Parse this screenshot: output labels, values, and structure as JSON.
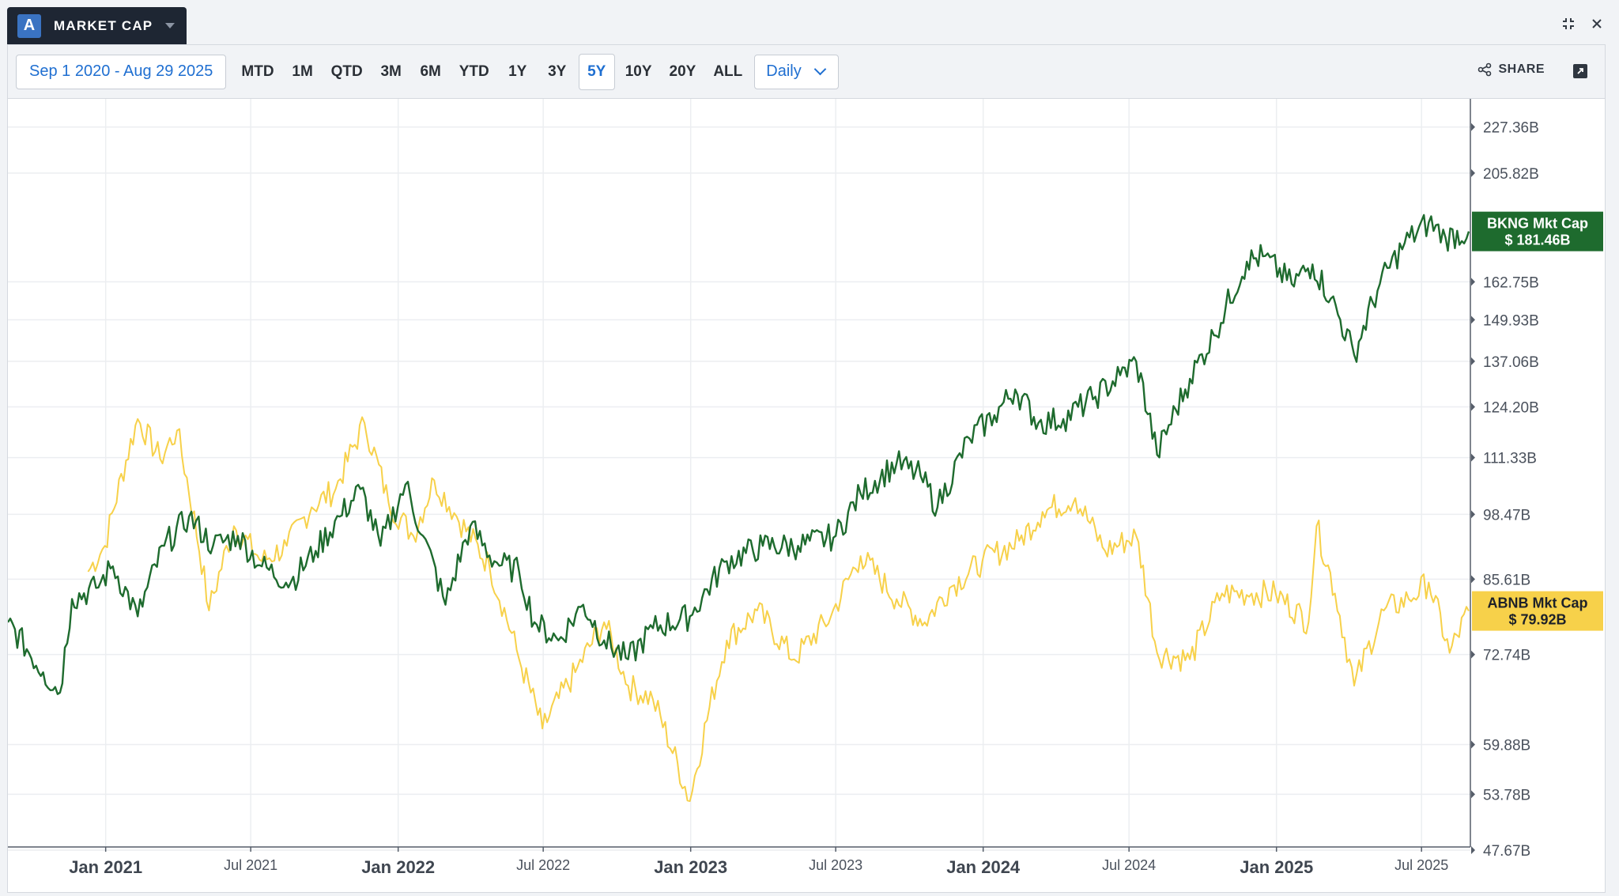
{
  "header": {
    "logo_letter": "A",
    "title": "MARKET CAP"
  },
  "toolbar": {
    "date_range": "Sep 1 2020 - Aug 29 2025",
    "ranges": [
      "MTD",
      "1M",
      "QTD",
      "3M",
      "6M",
      "YTD",
      "1Y",
      "3Y",
      "5Y",
      "10Y",
      "20Y",
      "ALL"
    ],
    "active_range": "5Y",
    "frequency": "Daily",
    "share_label": "SHARE"
  },
  "colors": {
    "bkng": "#1e6b2e",
    "abnb": "#f7d14a",
    "accent": "#1f6fd1"
  },
  "chart_data": {
    "type": "line",
    "y_scale": "log",
    "ylim": [
      "47.67B",
      "240B"
    ],
    "y_ticks": [
      "227.36B",
      "205.82B",
      "162.75B",
      "149.93B",
      "137.06B",
      "124.20B",
      "111.33B",
      "98.47B",
      "85.61B",
      "72.74B",
      "59.88B",
      "53.78B",
      "47.67B"
    ],
    "x_range": [
      "2020-09-01",
      "2025-08-29"
    ],
    "x_ticks_major": [
      "Jan 2021",
      "Jan 2022",
      "Jan 2023",
      "Jan 2024",
      "Jan 2025"
    ],
    "x_ticks_minor": [
      "Jul 2021",
      "Jul 2022",
      "Jul 2023",
      "Jul 2024",
      "Jul 2025"
    ],
    "grid": true,
    "series": [
      {
        "name": "BKNG Mkt Cap",
        "label_value": "$ 181.46B",
        "color": "#1e6b2e",
        "points": [
          [
            "2020-09-01",
            78
          ],
          [
            "2020-10-15",
            70
          ],
          [
            "2020-11-05",
            67
          ],
          [
            "2020-11-20",
            82
          ],
          [
            "2020-12-20",
            84
          ],
          [
            "2021-01-10",
            88
          ],
          [
            "2021-02-10",
            79
          ],
          [
            "2021-03-15",
            92
          ],
          [
            "2021-04-15",
            98
          ],
          [
            "2021-05-15",
            92
          ],
          [
            "2021-06-15",
            94
          ],
          [
            "2021-07-15",
            88
          ],
          [
            "2021-08-20",
            85
          ],
          [
            "2021-09-20",
            91
          ],
          [
            "2021-10-20",
            98
          ],
          [
            "2021-11-15",
            104
          ],
          [
            "2021-12-10",
            92
          ],
          [
            "2022-01-10",
            105
          ],
          [
            "2022-02-01",
            94
          ],
          [
            "2022-03-01",
            81
          ],
          [
            "2022-04-01",
            96
          ],
          [
            "2022-05-01",
            89
          ],
          [
            "2022-06-01",
            87
          ],
          [
            "2022-06-20",
            78
          ],
          [
            "2022-07-20",
            75
          ],
          [
            "2022-08-20",
            81
          ],
          [
            "2022-09-15",
            75
          ],
          [
            "2022-10-15",
            72
          ],
          [
            "2022-11-15",
            77
          ],
          [
            "2022-12-31",
            79
          ],
          [
            "2023-02-15",
            89
          ],
          [
            "2023-04-01",
            92
          ],
          [
            "2023-05-15",
            92
          ],
          [
            "2023-07-01",
            94
          ],
          [
            "2023-08-01",
            103
          ],
          [
            "2023-09-15",
            110
          ],
          [
            "2023-10-15",
            107
          ],
          [
            "2023-11-05",
            100
          ],
          [
            "2023-12-15",
            116
          ],
          [
            "2024-01-15",
            122
          ],
          [
            "2024-02-10",
            129
          ],
          [
            "2024-03-10",
            120
          ],
          [
            "2024-04-10",
            121
          ],
          [
            "2024-05-20",
            127
          ],
          [
            "2024-06-20",
            133
          ],
          [
            "2024-07-10",
            137
          ],
          [
            "2024-08-05",
            112
          ],
          [
            "2024-09-15",
            132
          ],
          [
            "2024-10-15",
            145
          ],
          [
            "2024-11-25",
            170
          ],
          [
            "2024-12-15",
            172
          ],
          [
            "2025-01-20",
            162
          ],
          [
            "2025-02-15",
            169
          ],
          [
            "2025-03-10",
            157
          ],
          [
            "2025-04-08",
            139
          ],
          [
            "2025-05-10",
            162
          ],
          [
            "2025-06-10",
            177
          ],
          [
            "2025-07-10",
            185
          ],
          [
            "2025-07-31",
            179
          ],
          [
            "2025-08-29",
            181.46
          ]
        ]
      },
      {
        "name": "ABNB Mkt Cap",
        "label_value": "$ 79.92B",
        "color": "#f7d14a",
        "points": [
          [
            "2020-12-10",
            87
          ],
          [
            "2020-12-31",
            92
          ],
          [
            "2021-02-10",
            121
          ],
          [
            "2021-03-10",
            111
          ],
          [
            "2021-03-31",
            118
          ],
          [
            "2021-05-10",
            80
          ],
          [
            "2021-06-10",
            96
          ],
          [
            "2021-07-15",
            89
          ],
          [
            "2021-08-15",
            92
          ],
          [
            "2021-09-15",
            100
          ],
          [
            "2021-10-15",
            104
          ],
          [
            "2021-11-20",
            120
          ],
          [
            "2021-12-20",
            101
          ],
          [
            "2022-01-20",
            94
          ],
          [
            "2022-02-15",
            106
          ],
          [
            "2022-03-15",
            98
          ],
          [
            "2022-04-25",
            88
          ],
          [
            "2022-06-01",
            72
          ],
          [
            "2022-06-30",
            62
          ],
          [
            "2022-08-10",
            70
          ],
          [
            "2022-09-15",
            78
          ],
          [
            "2022-10-15",
            68
          ],
          [
            "2022-11-15",
            66
          ],
          [
            "2022-12-31",
            53
          ],
          [
            "2023-02-15",
            75
          ],
          [
            "2023-03-25",
            80
          ],
          [
            "2023-05-10",
            72
          ],
          [
            "2023-06-25",
            79
          ],
          [
            "2023-08-01",
            90
          ],
          [
            "2023-09-15",
            82
          ],
          [
            "2023-10-20",
            78
          ],
          [
            "2023-11-20",
            84
          ],
          [
            "2023-12-31",
            89
          ],
          [
            "2024-02-15",
            93
          ],
          [
            "2024-03-15",
            99
          ],
          [
            "2024-04-25",
            102
          ],
          [
            "2024-06-01",
            91
          ],
          [
            "2024-07-10",
            94
          ],
          [
            "2024-08-05",
            73
          ],
          [
            "2024-09-15",
            72
          ],
          [
            "2024-10-25",
            83
          ],
          [
            "2024-12-01",
            83
          ],
          [
            "2024-12-31",
            83
          ],
          [
            "2025-02-10",
            78
          ],
          [
            "2025-02-20",
            96
          ],
          [
            "2025-03-15",
            83
          ],
          [
            "2025-04-08",
            68
          ],
          [
            "2025-05-15",
            80
          ],
          [
            "2025-06-15",
            82
          ],
          [
            "2025-07-10",
            85
          ],
          [
            "2025-08-05",
            73
          ],
          [
            "2025-08-29",
            79.92
          ]
        ]
      }
    ]
  }
}
